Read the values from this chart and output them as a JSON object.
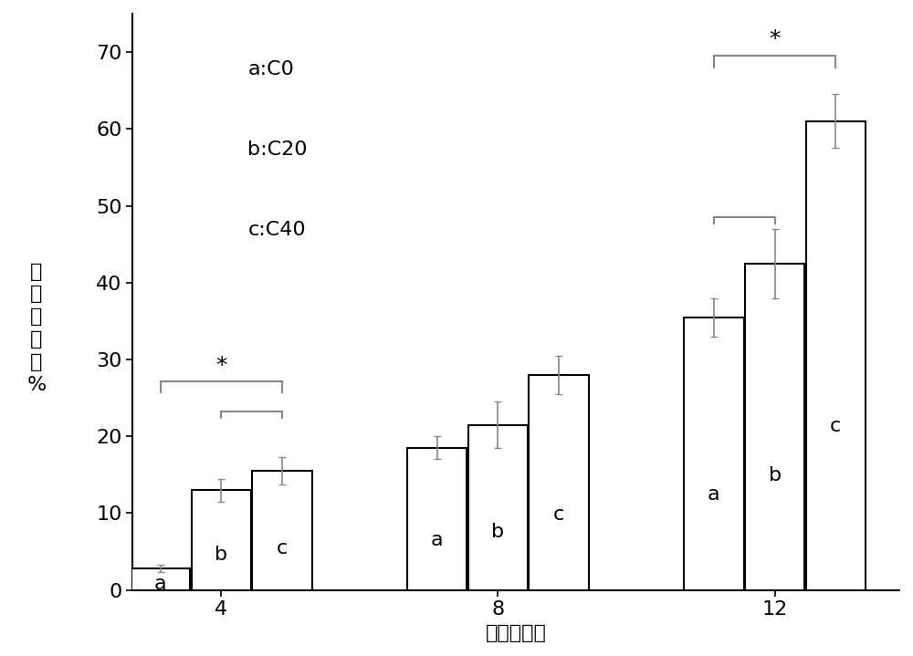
{
  "groups": [
    "4",
    "8",
    "12"
  ],
  "bars": [
    "a",
    "b",
    "c"
  ],
  "values": [
    [
      2.8,
      13.0,
      15.5
    ],
    [
      18.5,
      21.5,
      28.0
    ],
    [
      35.5,
      42.5,
      61.0
    ]
  ],
  "errors": [
    [
      0.5,
      1.5,
      1.8
    ],
    [
      1.5,
      3.0,
      2.5
    ],
    [
      2.5,
      4.5,
      3.5
    ]
  ],
  "bar_color": "#ffffff",
  "bar_edgecolor": "#000000",
  "bar_width": 0.22,
  "ylabel_chars": [
    "阳",
    "性",
    "表",
    "达",
    "率",
    "%"
  ],
  "xlabel": "时间（周）",
  "ylim": [
    0,
    75
  ],
  "yticks": [
    0,
    10,
    20,
    30,
    40,
    50,
    60,
    70
  ],
  "legend_lines": [
    "a:C0",
    "b:C20",
    "c:C40"
  ],
  "background_color": "#ffffff",
  "label_fontsize": 16,
  "tick_fontsize": 16,
  "bar_label_fontsize": 16,
  "legend_fontsize": 16,
  "bracket_color": "#888888",
  "bracket_lw": 1.5
}
